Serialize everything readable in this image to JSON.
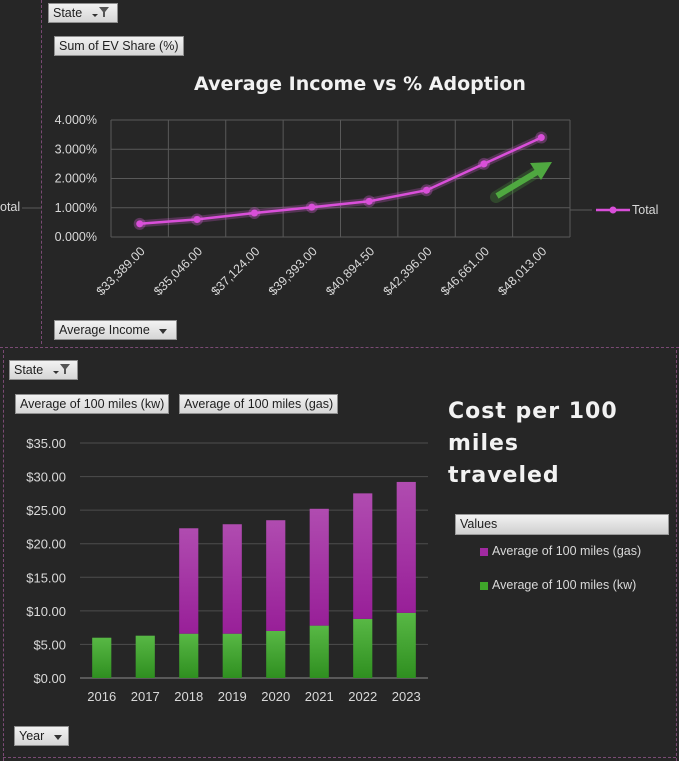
{
  "top_panel": {
    "filter_button": {
      "label": "State"
    },
    "value_button": {
      "label": "Sum of EV Share (%)"
    },
    "axis_button": {
      "label": "Average Income"
    },
    "clipped_label": "otal",
    "legend_label": "Total"
  },
  "bottom_panel": {
    "filter_button": {
      "label": "State"
    },
    "value_button_kw": {
      "label": "Average of 100 miles (kw)"
    },
    "value_button_gas": {
      "label": "Average of 100 miles (gas)"
    },
    "axis_button": {
      "label": "Year"
    },
    "values_header": "Values",
    "legend": [
      {
        "label": "Average of 100 miles (gas)",
        "color": "#a12aa1"
      },
      {
        "label": "Average of 100 miles (kw)",
        "color": "#3fa62a"
      }
    ]
  },
  "colors": {
    "line": "#d94fd9",
    "gas": "#a12aa1",
    "kw": "#3fa62a",
    "arrow": "#4fa840",
    "background": "#262626"
  },
  "icons": {
    "filter": "funnel-icon",
    "dropdown": "chevron-down-icon",
    "trend": "up-arrow-icon"
  },
  "chart_data": [
    {
      "type": "line",
      "title": "Average Income vs % Adoption",
      "categories": [
        "$33,389.00",
        "$35,046.00",
        "$37,124.00",
        "$39,393.00",
        "$40,894.50",
        "$42,396.00",
        "$46,661.00",
        "$48,013.00"
      ],
      "series": [
        {
          "name": "Total",
          "values": [
            0.45,
            0.6,
            0.82,
            1.02,
            1.22,
            1.6,
            2.5,
            3.4
          ]
        }
      ],
      "ylim": [
        0,
        4
      ],
      "yticks": [
        "0.000%",
        "1.000%",
        "2.000%",
        "3.000%",
        "4.000%"
      ],
      "grid": true,
      "legend": "right"
    },
    {
      "type": "bar",
      "stacked": true,
      "title": "Cost per 100 miles traveled",
      "categories": [
        "2016",
        "2017",
        "2018",
        "2019",
        "2020",
        "2021",
        "2022",
        "2023"
      ],
      "series": [
        {
          "name": "Average of 100 miles (kw)",
          "values": [
            6.0,
            6.3,
            6.6,
            6.6,
            7.0,
            7.8,
            8.8,
            9.7
          ]
        },
        {
          "name": "Average of 100 miles (gas)",
          "values": [
            0,
            0,
            15.7,
            16.3,
            16.5,
            17.4,
            18.7,
            19.5
          ]
        }
      ],
      "ylim": [
        0,
        35
      ],
      "yticks": [
        "$0.00",
        "$5.00",
        "$10.00",
        "$15.00",
        "$20.00",
        "$25.00",
        "$30.00",
        "$35.00"
      ],
      "grid": true,
      "legend": "right"
    }
  ]
}
